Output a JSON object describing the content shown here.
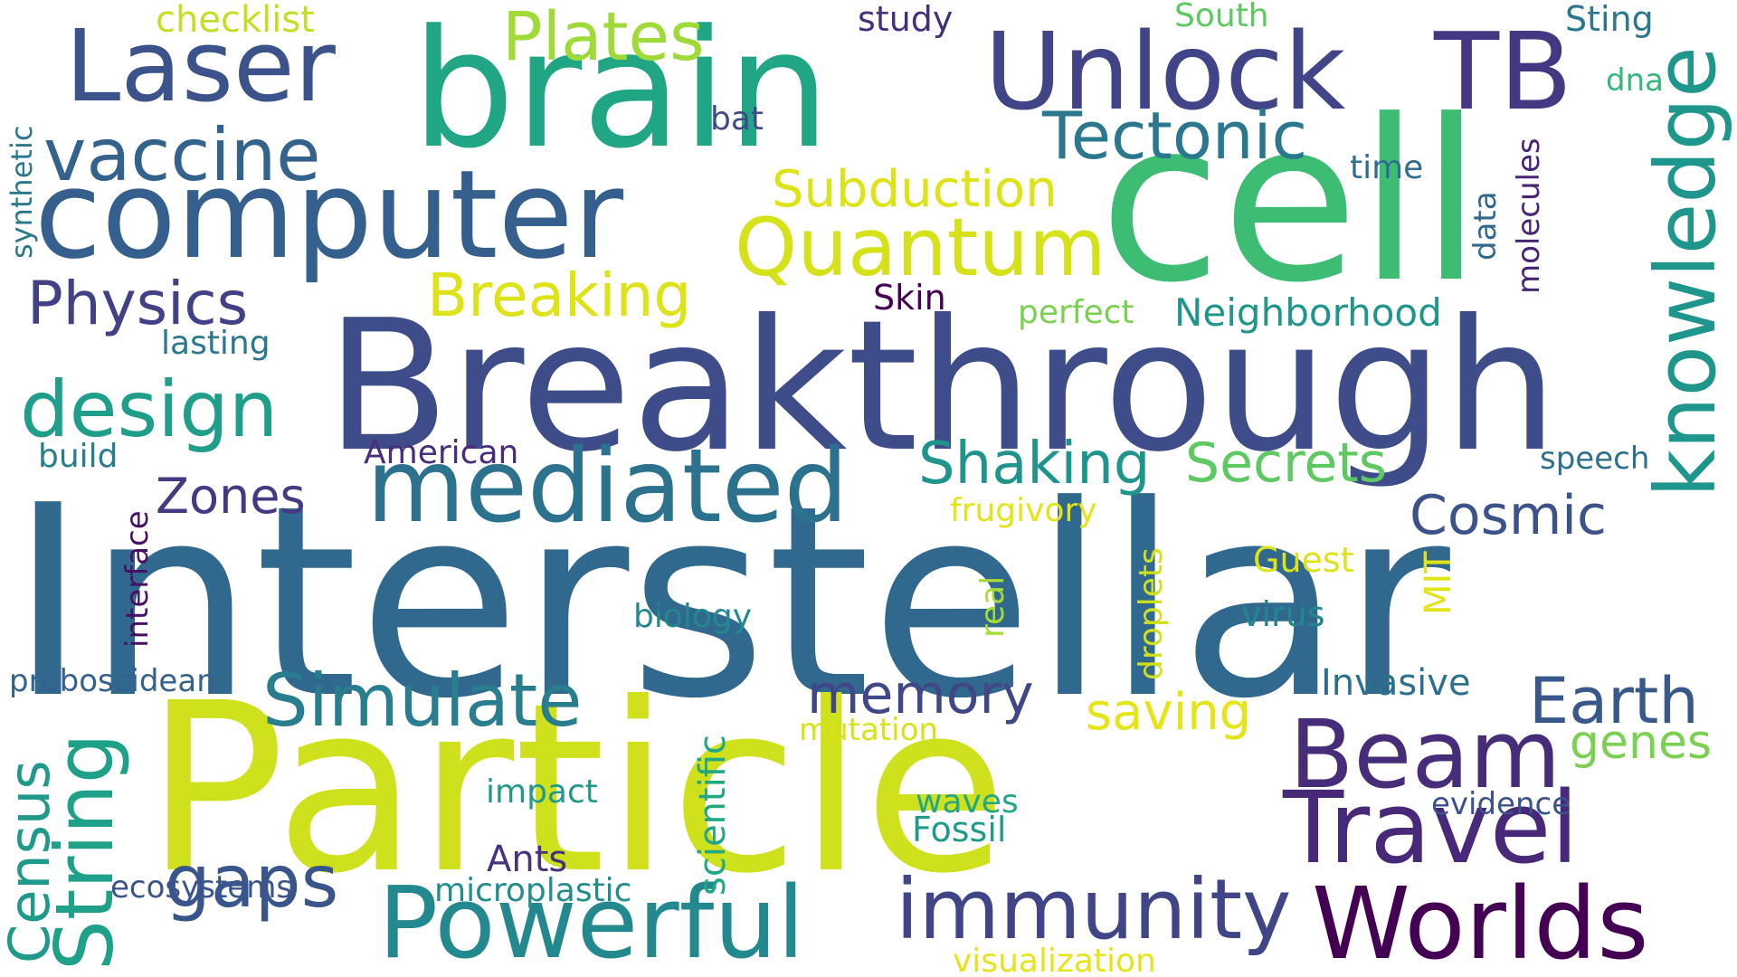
{
  "colors": {
    "background": "#ffffff"
  },
  "words": {
    "interstellar": {
      "text": "Interstellar",
      "color": "#31688e"
    },
    "particle": {
      "text": "Particle",
      "color": "#cfe11c"
    },
    "breakthrough": {
      "text": "Breakthrough",
      "color": "#3e4c8a"
    },
    "cell": {
      "text": "cell",
      "color": "#3dbc74"
    },
    "brain": {
      "text": "brain",
      "color": "#21a685"
    },
    "computer": {
      "text": "computer",
      "color": "#355f8d"
    },
    "unlock": {
      "text": "Unlock",
      "color": "#414487"
    },
    "tb": {
      "text": "TB",
      "color": "#453781"
    },
    "laser": {
      "text": "Laser",
      "color": "#3b528b"
    },
    "mediated": {
      "text": "mediated",
      "color": "#2c728e"
    },
    "powerful": {
      "text": "Powerful",
      "color": "#23898e"
    },
    "worlds": {
      "text": "Worlds",
      "color": "#440154"
    },
    "beam": {
      "text": "Beam",
      "color": "#472c7a"
    },
    "travel": {
      "text": "Travel",
      "color": "#482878"
    },
    "immunity": {
      "text": "immunity",
      "color": "#404588"
    },
    "quantum": {
      "text": "Quantum",
      "color": "#d5e21a"
    },
    "design": {
      "text": "design",
      "color": "#1f9e89"
    },
    "vaccine": {
      "text": "vaccine",
      "color": "#33628d"
    },
    "simulate": {
      "text": "Simulate",
      "color": "#287d8e"
    },
    "gaps": {
      "text": "gaps",
      "color": "#39568c"
    },
    "plates": {
      "text": "Plates",
      "color": "#a0da39"
    },
    "tectonic": {
      "text": "Tectonic",
      "color": "#2a778e"
    },
    "physics": {
      "text": "Physics",
      "color": "#424086"
    },
    "breaking": {
      "text": "Breaking",
      "color": "#dde318"
    },
    "shaking": {
      "text": "Shaking",
      "color": "#1f948c"
    },
    "secrets": {
      "text": "Secrets",
      "color": "#5ec962"
    },
    "earth": {
      "text": "Earth",
      "color": "#38588c"
    },
    "cosmic": {
      "text": "Cosmic",
      "color": "#3b528b"
    },
    "memory": {
      "text": "memory",
      "color": "#3f4788"
    },
    "saving": {
      "text": "saving",
      "color": "#e5e419"
    },
    "subduction": {
      "text": "Subduction",
      "color": "#dde318"
    },
    "zones": {
      "text": "Zones",
      "color": "#443983"
    },
    "genes": {
      "text": "genes",
      "color": "#7ad151"
    },
    "neighborhood": {
      "text": "Neighborhood",
      "color": "#1f968b"
    },
    "invasive": {
      "text": "Invasive",
      "color": "#2d708e"
    },
    "ants": {
      "text": "Ants",
      "color": "#46327e"
    },
    "fossil": {
      "text": "Fossil",
      "color": "#1e9c89"
    },
    "waves": {
      "text": "waves",
      "color": "#22a884"
    },
    "checklist": {
      "text": "checklist",
      "color": "#c2df23"
    },
    "study": {
      "text": "study",
      "color": "#46307e"
    },
    "south": {
      "text": "South",
      "color": "#5ec962"
    },
    "sting": {
      "text": "Sting",
      "color": "#2a788e"
    },
    "bat": {
      "text": "bat",
      "color": "#3e4a89"
    },
    "time": {
      "text": "time",
      "color": "#2e6e8e"
    },
    "dna": {
      "text": "dna",
      "color": "#35b779"
    },
    "skin": {
      "text": "Skin",
      "color": "#440154"
    },
    "perfect": {
      "text": "perfect",
      "color": "#7ad151"
    },
    "lasting": {
      "text": "lasting",
      "color": "#2a778e"
    },
    "build": {
      "text": "build",
      "color": "#287d8e"
    },
    "american": {
      "text": "American",
      "color": "#472d7b"
    },
    "speech": {
      "text": "speech",
      "color": "#2d708e"
    },
    "frugivory": {
      "text": "frugivory",
      "color": "#e5e419"
    },
    "guest": {
      "text": "Guest",
      "color": "#dde318"
    },
    "virus": {
      "text": "virus",
      "color": "#25858e"
    },
    "biology": {
      "text": "biology",
      "color": "#23888e"
    },
    "proboscidean": {
      "text": "proboscidean",
      "color": "#34618d"
    },
    "mutation": {
      "text": "mutation",
      "color": "#d8e219"
    },
    "impact": {
      "text": "impact",
      "color": "#1f9a8a"
    },
    "evidence": {
      "text": "evidence",
      "color": "#3b528b"
    },
    "ecosystems": {
      "text": "ecosystems",
      "color": "#3a548c"
    },
    "microplastic": {
      "text": "microplastic",
      "color": "#228d8d"
    },
    "visualization": {
      "text": "visualization",
      "color": "#e5e419"
    },
    "knowledge": {
      "text": "knowledge",
      "color": "#1f968b"
    },
    "string": {
      "text": "String",
      "color": "#1fa088"
    },
    "census": {
      "text": "Census",
      "color": "#1f998a"
    },
    "scientific": {
      "text": "scientific",
      "color": "#22a785"
    },
    "droplets": {
      "text": "droplets",
      "color": "#d0e11c"
    },
    "real": {
      "text": "real",
      "color": "#a8db34"
    },
    "mit": {
      "text": "MIT",
      "color": "#e2e418"
    },
    "interface": {
      "text": "interface",
      "color": "#471063"
    },
    "synthetic": {
      "text": "synthetic",
      "color": "#2a788e"
    },
    "data": {
      "text": "data",
      "color": "#31688e"
    },
    "molecules": {
      "text": "molecules",
      "color": "#482475"
    }
  }
}
